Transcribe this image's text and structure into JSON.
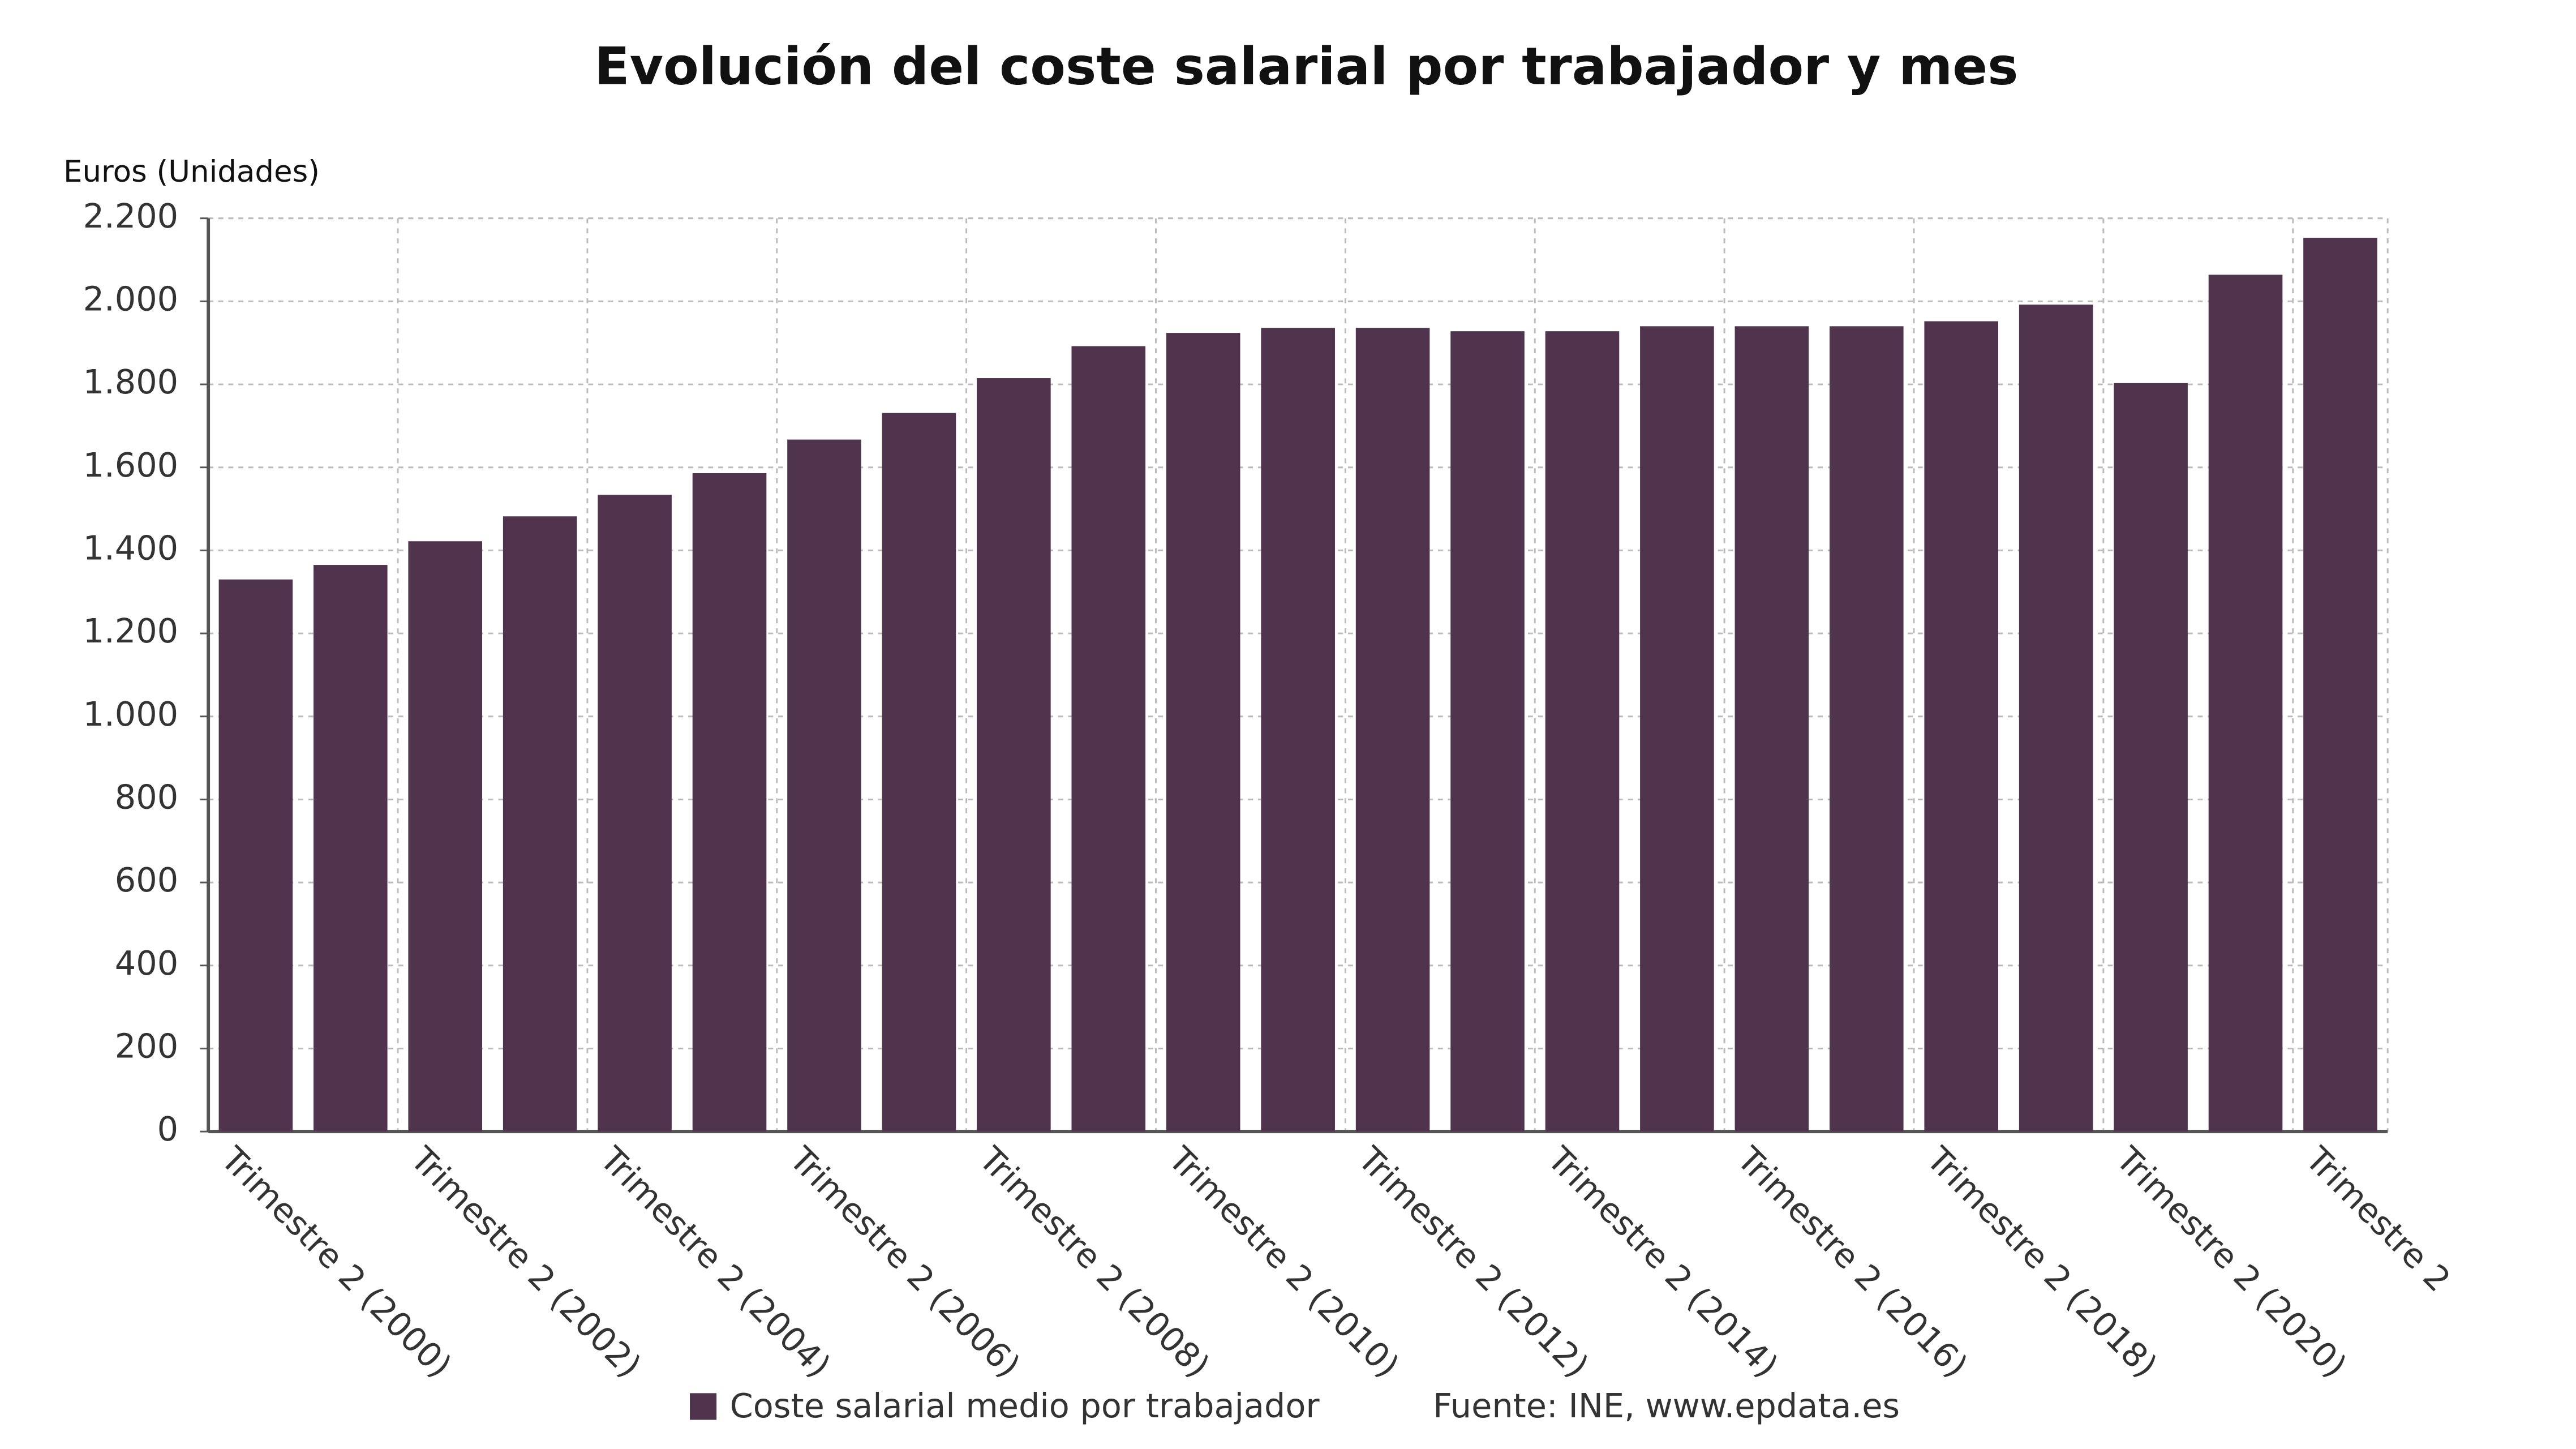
{
  "chart_data": {
    "type": "bar",
    "title": "Evolución del coste salarial por trabajador y mes",
    "y_axis_label": "Euros (Unidades)",
    "source": "Fuente: INE, www.epdata.es",
    "categories": [
      "Trimestre 2 (2000)",
      null,
      "Trimestre 2 (2002)",
      null,
      "Trimestre 2 (2004)",
      null,
      "Trimestre 2 (2006)",
      null,
      "Trimestre 2 (2008)",
      null,
      "Trimestre 2 (2010)",
      null,
      "Trimestre 2 (2012)",
      null,
      "Trimestre 2 (2014)",
      null,
      "Trimestre 2 (2016)",
      null,
      "Trimestre 2 (2018)",
      null,
      "Trimestre 2 (2020)",
      null,
      "Trimestre 2"
    ],
    "series": [
      {
        "name": "Coste salarial medio por trabajador",
        "color": "#50334c",
        "values": [
          1330,
          1365,
          1422,
          1482,
          1534,
          1586,
          1667,
          1731,
          1815,
          1892,
          1924,
          1936,
          1936,
          1928,
          1928,
          1940,
          1940,
          1940,
          1952,
          1992,
          1803,
          2064,
          2153
        ]
      }
    ],
    "ylim": [
      0,
      2200
    ],
    "yticks": [
      0,
      200,
      400,
      600,
      800,
      {
        "value": 1000,
        "label": "1.000"
      },
      {
        "value": 1200,
        "label": "1.200"
      },
      {
        "value": 1400,
        "label": "1.400"
      },
      {
        "value": 1600,
        "label": "1.600"
      },
      {
        "value": 1800,
        "label": "1.800"
      },
      {
        "value": 2000,
        "label": "2.000"
      },
      {
        "value": 2200,
        "label": "2.200"
      }
    ],
    "grid": true
  }
}
